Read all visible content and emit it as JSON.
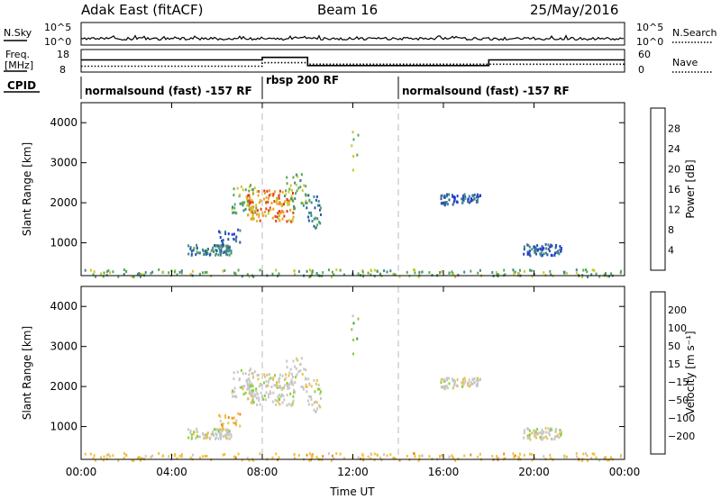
{
  "header": {
    "station": "Adak East (fitACF)",
    "beam": "Beam 16",
    "date": "25/May/2016"
  },
  "top_panel": {
    "left_label": "N.Sky",
    "right_label": "N.Search",
    "left_ticks": [
      "10^5",
      "10^0"
    ],
    "right_ticks": [
      "10^5",
      "10^0"
    ]
  },
  "freq_panel": {
    "label_line1": "Freq.",
    "label_line2": "[MHz]",
    "left_ticks": [
      "18",
      "8"
    ],
    "right_ticks": [
      "60",
      "0"
    ],
    "right_label": "Nave"
  },
  "cpid": {
    "label": "CPID",
    "segments": [
      {
        "name": "normalsound (fast) -157 RF",
        "start_hour": 0
      },
      {
        "name": "rbsp 200 RF",
        "start_hour": 8
      },
      {
        "name": "normalsound (fast) -157 RF",
        "start_hour": 14
      }
    ]
  },
  "power_colorbar": {
    "label": "Power [dB]",
    "ticks": [
      "28",
      "24",
      "20",
      "16",
      "12",
      "8",
      "4"
    ],
    "colors": [
      "#1e3ad8",
      "#2d55a8",
      "#3f8a8a",
      "#5aa85a",
      "#c8c832",
      "#f0a020",
      "#e23a1a",
      "#d81e1e"
    ]
  },
  "velocity_colorbar": {
    "label": "Velocity [m s⁻¹]",
    "ticks": [
      "200",
      "100",
      "50",
      "15",
      "−15",
      "−50",
      "−100",
      "−200"
    ],
    "colors": [
      "#1e3ad8",
      "#2d6c8c",
      "#3aa83a",
      "#8acf3a",
      "#c8c8c8",
      "#f0c040",
      "#f08a20",
      "#e85a1a",
      "#d81e1e"
    ]
  },
  "chart_data": {
    "type": "heatmap",
    "xlabel": "Time UT",
    "ylabel": "Slant Range [km]",
    "x_ticks": [
      "00:00",
      "04:00",
      "08:00",
      "12:00",
      "16:00",
      "20:00",
      "00:00"
    ],
    "y_ticks": [
      "1000",
      "2000",
      "3000",
      "4000"
    ],
    "xlim_hours": [
      0,
      24
    ],
    "ylim_km": [
      180,
      4500
    ],
    "mode_change_hours": [
      8,
      14
    ],
    "freq_steps": [
      {
        "start_hour": 0,
        "end_hour": 8,
        "mhz": 13.5
      },
      {
        "start_hour": 8,
        "end_hour": 10,
        "mhz": 14.8
      },
      {
        "start_hour": 10,
        "end_hour": 18,
        "mhz": 10.5
      },
      {
        "start_hour": 18,
        "end_hour": 24,
        "mhz": 13.5
      }
    ],
    "nave_steps": [
      {
        "start_hour": 0,
        "end_hour": 8,
        "nave": 13
      },
      {
        "start_hour": 8,
        "end_hour": 10,
        "nave": 24
      },
      {
        "start_hour": 10,
        "end_hour": 24,
        "nave": 19
      }
    ],
    "scatter_regions": [
      {
        "h0": 4.7,
        "h1": 6.6,
        "r0": 720,
        "r1": 980,
        "density": 0.55,
        "power_level": 2,
        "velocity_level": 4
      },
      {
        "h0": 6.6,
        "h1": 7.7,
        "r0": 1750,
        "r1": 2500,
        "density": 0.5,
        "power_level": 3,
        "velocity_level": 4
      },
      {
        "h0": 7.3,
        "h1": 9.4,
        "r0": 1550,
        "r1": 2350,
        "density": 0.75,
        "power_level": 5,
        "velocity_level": 4
      },
      {
        "h0": 8.9,
        "h1": 9.9,
        "r0": 1850,
        "r1": 2750,
        "density": 0.45,
        "power_level": 3,
        "velocity_level": 4
      },
      {
        "h0": 9.9,
        "h1": 10.6,
        "r0": 1400,
        "r1": 2250,
        "density": 0.55,
        "power_level": 2,
        "velocity_level": 4
      },
      {
        "h0": 6.0,
        "h1": 7.0,
        "r0": 1000,
        "r1": 1400,
        "density": 0.25,
        "power_level": 1,
        "velocity_level": 5
      },
      {
        "h0": 11.9,
        "h1": 12.3,
        "r0": 2500,
        "r1": 4200,
        "density": 0.2,
        "power_level": 4,
        "velocity_level": 3
      },
      {
        "h0": 15.8,
        "h1": 16.6,
        "r0": 1950,
        "r1": 2250,
        "density": 0.5,
        "power_level": 1,
        "velocity_level": 4
      },
      {
        "h0": 16.7,
        "h1": 17.6,
        "r0": 2020,
        "r1": 2250,
        "density": 0.45,
        "power_level": 1,
        "velocity_level": 4
      },
      {
        "h0": 19.5,
        "h1": 21.2,
        "r0": 700,
        "r1": 1000,
        "density": 0.5,
        "power_level": 1,
        "velocity_level": 4
      },
      {
        "h0": 0.0,
        "h1": 24.0,
        "r0": 180,
        "r1": 360,
        "density": 0.1,
        "power_level": 3,
        "velocity_level": 5
      }
    ]
  }
}
